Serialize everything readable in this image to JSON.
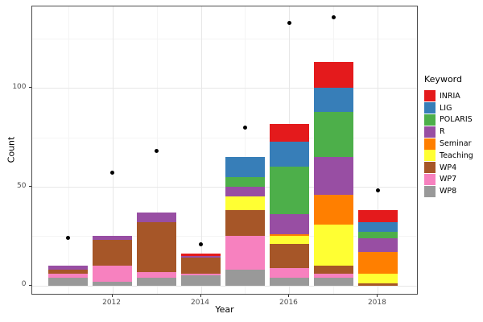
{
  "chart_data": {
    "type": "bar",
    "stacked": true,
    "title": "",
    "xlabel": "Year",
    "ylabel": "Count",
    "categories": [
      2011,
      2012,
      2013,
      2014,
      2015,
      2016,
      2017,
      2018
    ],
    "x_tick_years": [
      2012,
      2014,
      2016,
      2018
    ],
    "x_tick_labels": [
      "2012",
      "2014",
      "2016",
      "2018"
    ],
    "x_minor_years": [
      2011,
      2013,
      2015,
      2017
    ],
    "y_ticks": [
      0,
      50,
      100
    ],
    "y_tick_labels": [
      "0",
      "50",
      "100"
    ],
    "y_minor_ticks": [
      25,
      75,
      125
    ],
    "xlim": [
      2010.18,
      2018.92
    ],
    "ylim": [
      -4.8,
      141.3
    ],
    "bar_width_years": 0.9,
    "grid": true,
    "legend_position": "right",
    "series": [
      {
        "name": "WP8",
        "color": "#999999",
        "values": [
          4,
          2,
          4,
          5,
          8,
          4,
          4,
          0
        ]
      },
      {
        "name": "WP7",
        "color": "#F781BF",
        "values": [
          2,
          8,
          3,
          1,
          17,
          5,
          2,
          0
        ]
      },
      {
        "name": "WP4",
        "color": "#A65628",
        "values": [
          2,
          13,
          25,
          8,
          13,
          12,
          4,
          1
        ]
      },
      {
        "name": "Teaching",
        "color": "#FFFF33",
        "values": [
          0,
          0,
          0,
          0,
          7,
          4,
          21,
          5
        ]
      },
      {
        "name": "Seminar",
        "color": "#FF7F00",
        "values": [
          0,
          0,
          0,
          0,
          0,
          1,
          15,
          11
        ]
      },
      {
        "name": "R",
        "color": "#984EA3",
        "values": [
          2,
          2,
          5,
          1,
          5,
          10,
          19,
          7
        ]
      },
      {
        "name": "POLARIS",
        "color": "#4DAF4A",
        "values": [
          0,
          0,
          0,
          0,
          5,
          24,
          23,
          3
        ]
      },
      {
        "name": "LIG",
        "color": "#377EB8",
        "values": [
          0,
          0,
          0,
          0,
          10,
          13,
          12,
          5
        ]
      },
      {
        "name": "INRIA",
        "color": "#E41A1C",
        "values": [
          0,
          0,
          0,
          1,
          0,
          9,
          13,
          6
        ]
      }
    ],
    "stack_totals": [
      10,
      25,
      37,
      16,
      65,
      82,
      113,
      38
    ],
    "points": {
      "name": "count-points",
      "color": "#000000",
      "values": [
        24,
        57,
        68,
        21,
        80,
        133,
        136,
        48
      ]
    },
    "legend": {
      "title": "Keyword",
      "entries": [
        {
          "label": "INRIA",
          "color": "#E41A1C"
        },
        {
          "label": "LIG",
          "color": "#377EB8"
        },
        {
          "label": "POLARIS",
          "color": "#4DAF4A"
        },
        {
          "label": "R",
          "color": "#984EA3"
        },
        {
          "label": "Seminar",
          "color": "#FF7F00"
        },
        {
          "label": "Teaching",
          "color": "#FFFF33"
        },
        {
          "label": "WP4",
          "color": "#A65628"
        },
        {
          "label": "WP7",
          "color": "#F781BF"
        },
        {
          "label": "WP8",
          "color": "#999999"
        }
      ]
    }
  }
}
